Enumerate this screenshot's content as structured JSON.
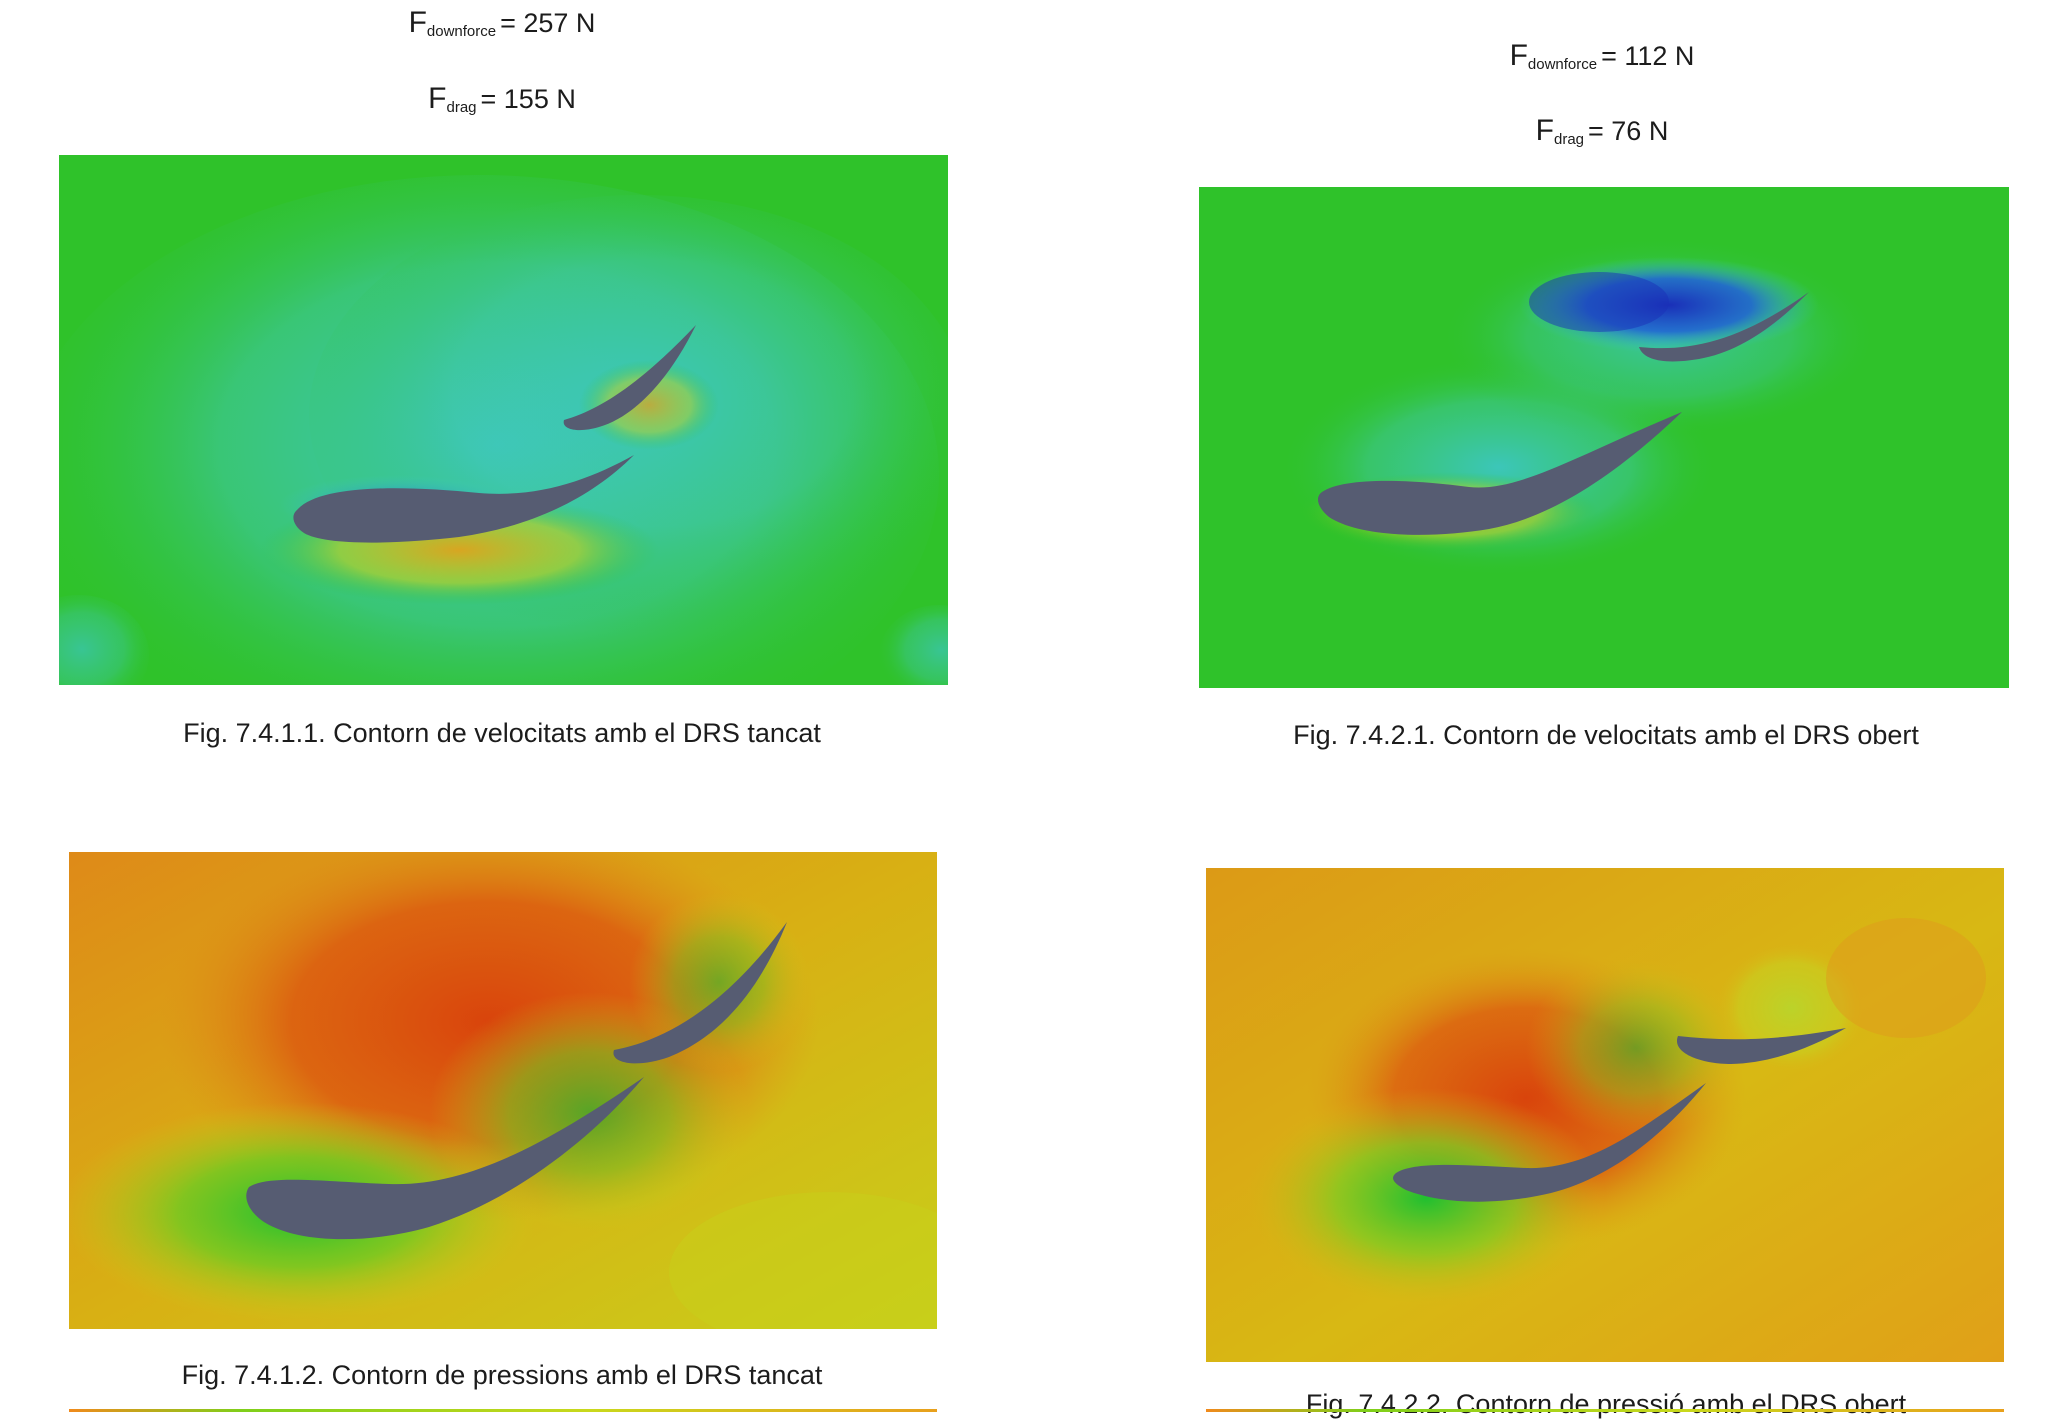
{
  "top_left": {
    "downforce": {
      "symbol": "F",
      "subscript": "downforce",
      "rest": "= 257 N"
    },
    "drag": {
      "symbol": "F",
      "subscript": "drag",
      "rest": "= 155 N"
    }
  },
  "top_right": {
    "downforce": {
      "symbol": "F",
      "subscript": "downforce",
      "rest": "= 112 N"
    },
    "drag": {
      "symbol": "F",
      "subscript": "drag",
      "rest": "= 76 N"
    }
  },
  "figures": {
    "fig_7_4_1_1": "Fig. 7.4.1.1. Contorn de velocitats amb el DRS tancat",
    "fig_7_4_2_1": "Fig. 7.4.2.1. Contorn de velocitats amb el DRS obert",
    "fig_7_4_1_2": "Fig. 7.4.1.2. Contorn de pressions amb el DRS tancat",
    "fig_7_4_2_2": "Fig. 7.4.2.2. Contorn de pressió amb el DRS obert"
  },
  "colors": {
    "airfoil": "#565c72",
    "velocity_base": "#2fc22a",
    "velocity_slow": "#2d8fd0",
    "velocity_stall": "#1a2fb8",
    "pressure_high": "#d9440c",
    "pressure_mid": "#d8b014",
    "pressure_low": "#38c62c"
  }
}
